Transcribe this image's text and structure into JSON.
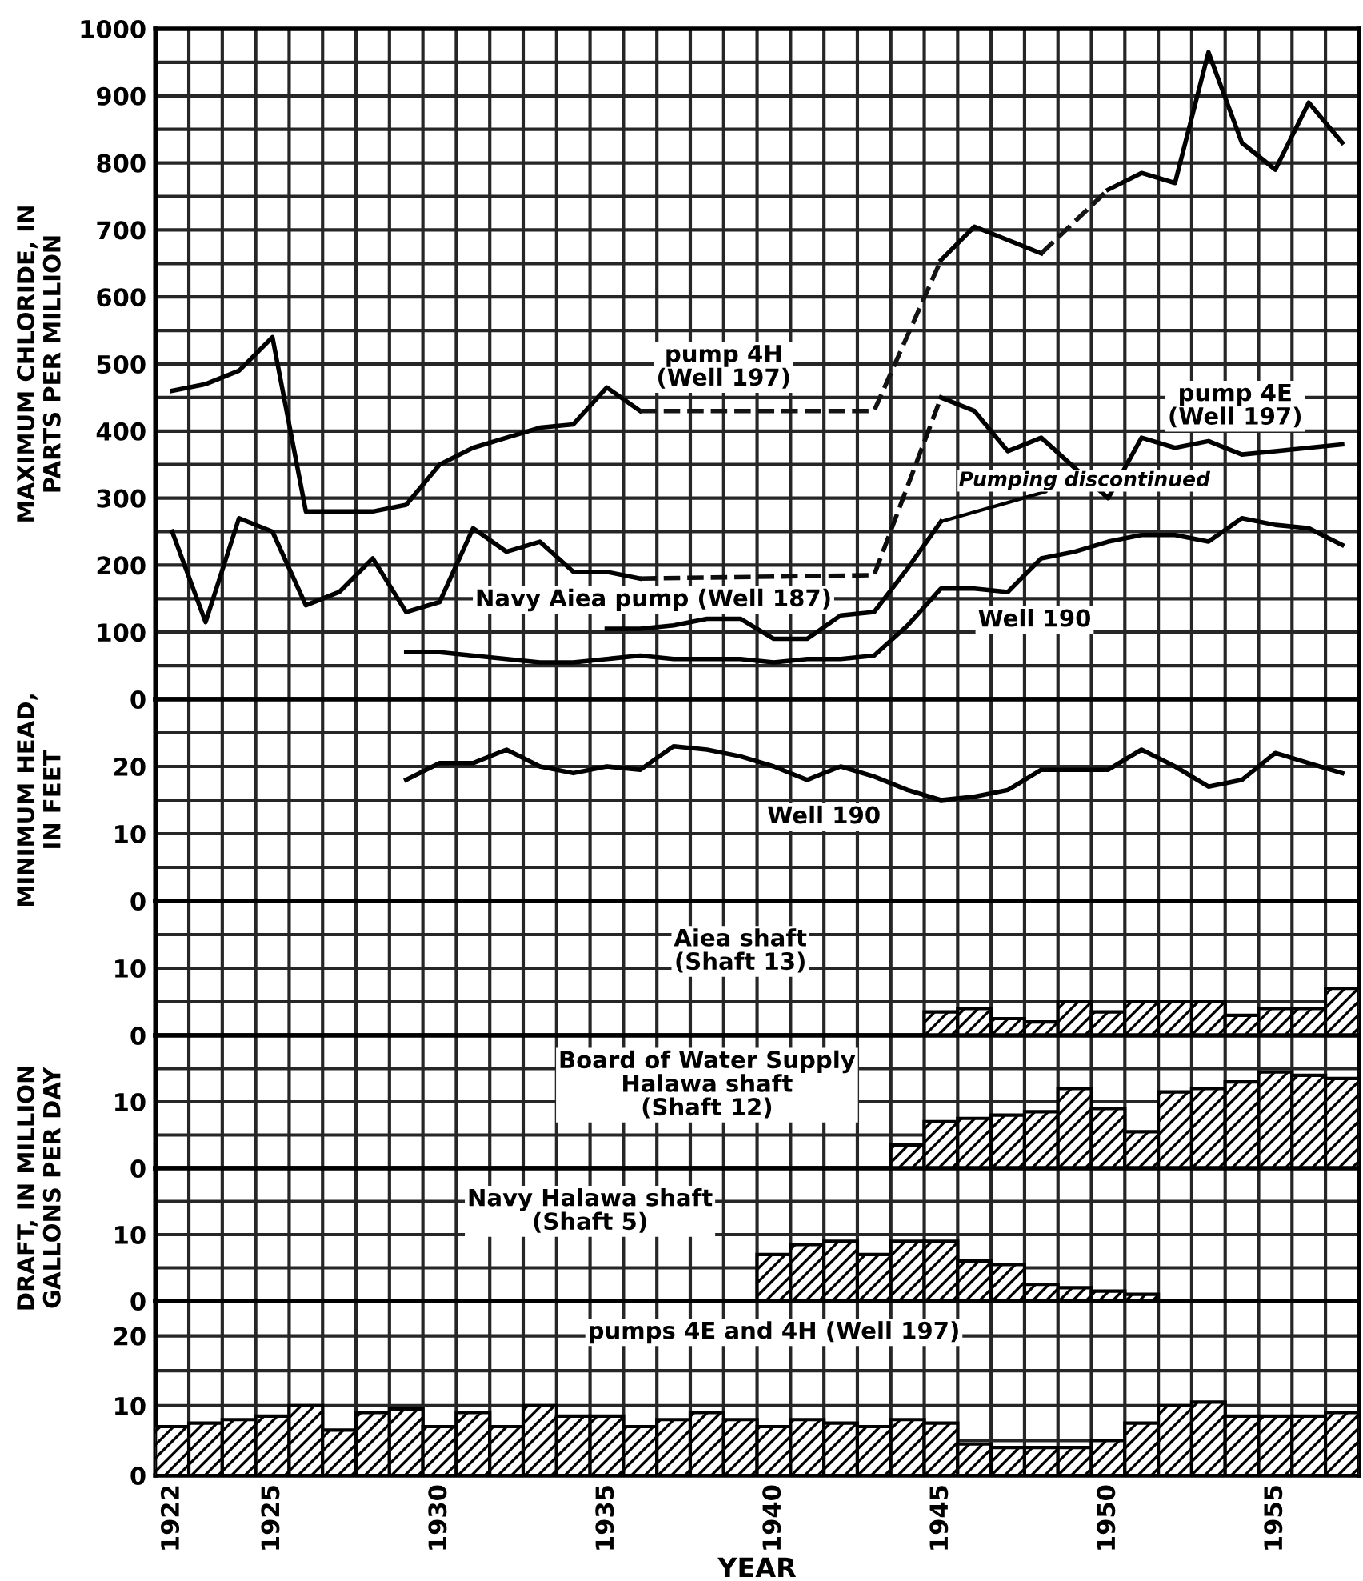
{
  "chart_data": [
    {
      "type": "line",
      "ylabel": "MAXIMUM CHLORIDE, IN\nPARTS PER MILLION",
      "xlim": [
        1921.5,
        1957.5
      ],
      "ylim": [
        0,
        1000
      ],
      "grid": true,
      "tick_labels": "y",
      "line_style": "solid",
      "xticks": [
        1922,
        1925,
        1930,
        1935,
        1940,
        1945,
        1950,
        1955,
        {
          "value": 1921.5,
          "label": null
        },
        {
          "value": 1922.5,
          "label": null
        },
        {
          "value": 1923.5,
          "label": null
        },
        {
          "value": 1924.5,
          "label": null
        },
        {
          "value": 1925.5,
          "label": null
        },
        {
          "value": 1926.5,
          "label": null
        },
        {
          "value": 1927.5,
          "label": null
        },
        {
          "value": 1928.5,
          "label": null
        },
        {
          "value": 1929.5,
          "label": null
        },
        {
          "value": 1930.5,
          "label": null
        },
        {
          "value": 1931.5,
          "label": null
        },
        {
          "value": 1932.5,
          "label": null
        },
        {
          "value": 1933.5,
          "label": null
        },
        {
          "value": 1934.5,
          "label": null
        },
        {
          "value": 1935.5,
          "label": null
        },
        {
          "value": 1936.5,
          "label": null
        },
        {
          "value": 1937.5,
          "label": null
        },
        {
          "value": 1938.5,
          "label": null
        },
        {
          "value": 1939.5,
          "label": null
        },
        {
          "value": 1940.5,
          "label": null
        },
        {
          "value": 1941.5,
          "label": null
        },
        {
          "value": 1942.5,
          "label": null
        },
        {
          "value": 1943.5,
          "label": null
        },
        {
          "value": 1944.5,
          "label": null
        },
        {
          "value": 1945.5,
          "label": null
        },
        {
          "value": 1946.5,
          "label": null
        },
        {
          "value": 1947.5,
          "label": null
        },
        {
          "value": 1948.5,
          "label": null
        },
        {
          "value": 1949.5,
          "label": null
        },
        {
          "value": 1950.5,
          "label": null
        },
        {
          "value": 1951.5,
          "label": null
        },
        {
          "value": 1952.5,
          "label": null
        },
        {
          "value": 1953.5,
          "label": null
        },
        {
          "value": 1954.5,
          "label": null
        },
        {
          "value": 1955.5,
          "label": null
        },
        {
          "value": 1956.5,
          "label": null
        },
        {
          "value": 1957.5,
          "label": null
        }
      ],
      "yticks": [
        0,
        {
          "value": 50,
          "label": null
        },
        100,
        {
          "value": 150,
          "label": null
        },
        200,
        {
          "value": 250,
          "label": null
        },
        300,
        {
          "value": 350,
          "label": null
        },
        400,
        {
          "value": 450,
          "label": null
        },
        500,
        {
          "value": 550,
          "label": null
        },
        600,
        {
          "value": 650,
          "label": null
        },
        700,
        {
          "value": 750,
          "label": null
        },
        800,
        {
          "value": 850,
          "label": null
        },
        900,
        {
          "value": 950,
          "label": null
        },
        1000
      ],
      "annotations": [
        {
          "text": "Pumping discontinued",
          "x": 1945,
          "y": 265
        }
      ],
      "series": [
        {
          "name": "pump 4H\n(Well 197)",
          "color": "#000000",
          "x": [
            1922,
            1923,
            1924,
            1925,
            1926,
            1927,
            1928,
            1929,
            1930,
            1931,
            1932,
            1933,
            1934,
            1935,
            1936,
            1937,
            1938,
            1939,
            1940,
            1941,
            1942,
            1943,
            1944,
            1945,
            1946,
            1947,
            1948,
            1949,
            1950,
            1951,
            1952,
            1953,
            1954,
            1955,
            1956,
            1957
          ],
          "values": [
            460,
            470,
            490,
            540,
            280,
            280,
            280,
            290,
            350,
            375,
            390,
            405,
            410,
            465,
            430,
            null,
            null,
            null,
            null,
            null,
            null,
            null,
            null,
            655,
            705,
            685,
            665,
            null,
            760,
            785,
            770,
            965,
            830,
            790,
            890,
            830
          ]
        },
        {
          "name": "pump 4E\n(Well 197)",
          "color": "#000000",
          "x": [
            1922,
            1923,
            1924,
            1925,
            1926,
            1927,
            1928,
            1929,
            1930,
            1931,
            1932,
            1933,
            1934,
            1935,
            1936,
            1937,
            1938,
            1939,
            1940,
            1941,
            1942,
            1943,
            1944,
            1945,
            1946,
            1947,
            1948,
            1949,
            1950,
            1951,
            1952,
            1953,
            1954,
            1955,
            1956,
            1957
          ],
          "values": [
            250,
            115,
            270,
            250,
            140,
            160,
            210,
            130,
            145,
            255,
            220,
            235,
            190,
            190,
            180,
            null,
            null,
            null,
            null,
            null,
            null,
            null,
            null,
            450,
            430,
            370,
            390,
            345,
            300,
            390,
            375,
            385,
            365,
            370,
            375,
            380
          ]
        },
        {
          "name": "Navy Aiea pump (Well 187)",
          "color": "#000000",
          "x": [
            1935,
            1936,
            1937,
            1938,
            1939,
            1940,
            1941,
            1942,
            1943,
            1944,
            1945
          ],
          "values": [
            105,
            105,
            110,
            120,
            120,
            90,
            90,
            125,
            130,
            195,
            265
          ]
        },
        {
          "name": "Well 190",
          "color": "#000000",
          "x": [
            1929,
            1930,
            1931,
            1932,
            1933,
            1934,
            1935,
            1936,
            1937,
            1938,
            1939,
            1940,
            1941,
            1942,
            1943,
            1944,
            1945,
            1946,
            1947,
            1948,
            1949,
            1950,
            1951,
            1952,
            1953,
            1954,
            1955,
            1956,
            1957
          ],
          "values": [
            70,
            70,
            65,
            60,
            55,
            55,
            60,
            65,
            60,
            60,
            60,
            55,
            60,
            60,
            65,
            110,
            165,
            165,
            160,
            210,
            220,
            235,
            245,
            245,
            235,
            270,
            260,
            255,
            230
          ]
        },
        {
          "color": "#141414",
          "line_style": "dashed",
          "x": [
            1936,
            1943,
            1945,
            1946,
            1948,
            1950
          ],
          "values": [
            430,
            430,
            655,
            null,
            665,
            760
          ]
        },
        {
          "color": "#0d0d0d",
          "line_style": "dashed",
          "x": [
            1936,
            1943,
            1945
          ],
          "values": [
            180,
            185,
            450
          ]
        }
      ]
    },
    {
      "type": "line",
      "ylabel": "MINIMUM HEAD,\nIN FEET",
      "xlim": [
        1921.5,
        1957.5
      ],
      "ylim": [
        0,
        30
      ],
      "grid": true,
      "tick_labels": "y",
      "line_style": "solid",
      "xticks": [
        1922,
        1925,
        1930,
        1935,
        1940,
        1945,
        1950,
        1955,
        {
          "value": 1921.5,
          "label": null
        },
        {
          "value": 1922.5,
          "label": null
        },
        {
          "value": 1923.5,
          "label": null
        },
        {
          "value": 1924.5,
          "label": null
        },
        {
          "value": 1925.5,
          "label": null
        },
        {
          "value": 1926.5,
          "label": null
        },
        {
          "value": 1927.5,
          "label": null
        },
        {
          "value": 1928.5,
          "label": null
        },
        {
          "value": 1929.5,
          "label": null
        },
        {
          "value": 1930.5,
          "label": null
        },
        {
          "value": 1931.5,
          "label": null
        },
        {
          "value": 1932.5,
          "label": null
        },
        {
          "value": 1933.5,
          "label": null
        },
        {
          "value": 1934.5,
          "label": null
        },
        {
          "value": 1935.5,
          "label": null
        },
        {
          "value": 1936.5,
          "label": null
        },
        {
          "value": 1937.5,
          "label": null
        },
        {
          "value": 1938.5,
          "label": null
        },
        {
          "value": 1939.5,
          "label": null
        },
        {
          "value": 1940.5,
          "label": null
        },
        {
          "value": 1941.5,
          "label": null
        },
        {
          "value": 1942.5,
          "label": null
        },
        {
          "value": 1943.5,
          "label": null
        },
        {
          "value": 1944.5,
          "label": null
        },
        {
          "value": 1945.5,
          "label": null
        },
        {
          "value": 1946.5,
          "label": null
        },
        {
          "value": 1947.5,
          "label": null
        },
        {
          "value": 1948.5,
          "label": null
        },
        {
          "value": 1949.5,
          "label": null
        },
        {
          "value": 1950.5,
          "label": null
        },
        {
          "value": 1951.5,
          "label": null
        },
        {
          "value": 1952.5,
          "label": null
        },
        {
          "value": 1953.5,
          "label": null
        },
        {
          "value": 1954.5,
          "label": null
        },
        {
          "value": 1955.5,
          "label": null
        },
        {
          "value": 1956.5,
          "label": null
        },
        {
          "value": 1957.5,
          "label": null
        }
      ],
      "yticks": [
        0,
        {
          "value": 5,
          "label": null
        },
        10,
        {
          "value": 15,
          "label": null
        },
        20,
        {
          "value": 25,
          "label": null
        },
        {
          "value": 30,
          "label": null
        }
      ],
      "series": [
        {
          "name": "Well 190",
          "color": "#000000",
          "x": [
            1929,
            1930,
            1931,
            1932,
            1933,
            1934,
            1935,
            1936,
            1937,
            1938,
            1939,
            1940,
            1941,
            1942,
            1943,
            1944,
            1945,
            1946,
            1947,
            1948,
            1949,
            1950,
            1951,
            1952,
            1953,
            1954,
            1955,
            1956,
            1957
          ],
          "values": [
            18,
            20.5,
            20.5,
            22.5,
            20,
            19,
            20,
            19.5,
            23,
            22.5,
            21.5,
            20,
            18,
            20,
            18.5,
            16.5,
            15,
            15.5,
            16.5,
            19.5,
            19.5,
            19.5,
            22.5,
            20,
            17,
            18,
            22,
            20.5,
            19
          ]
        }
      ]
    },
    {
      "type": "bar",
      "xlim": [
        1921.5,
        1957.5
      ],
      "ylim": [
        0,
        20
      ],
      "grid": true,
      "tick_labels": "y",
      "xticks": [
        1922,
        1925,
        1930,
        1935,
        1940,
        1945,
        1950,
        1955,
        {
          "value": 1921.5,
          "label": null
        },
        {
          "value": 1922.5,
          "label": null
        },
        {
          "value": 1923.5,
          "label": null
        },
        {
          "value": 1924.5,
          "label": null
        },
        {
          "value": 1925.5,
          "label": null
        },
        {
          "value": 1926.5,
          "label": null
        },
        {
          "value": 1927.5,
          "label": null
        },
        {
          "value": 1928.5,
          "label": null
        },
        {
          "value": 1929.5,
          "label": null
        },
        {
          "value": 1930.5,
          "label": null
        },
        {
          "value": 1931.5,
          "label": null
        },
        {
          "value": 1932.5,
          "label": null
        },
        {
          "value": 1933.5,
          "label": null
        },
        {
          "value": 1934.5,
          "label": null
        },
        {
          "value": 1935.5,
          "label": null
        },
        {
          "value": 1936.5,
          "label": null
        },
        {
          "value": 1937.5,
          "label": null
        },
        {
          "value": 1938.5,
          "label": null
        },
        {
          "value": 1939.5,
          "label": null
        },
        {
          "value": 1940.5,
          "label": null
        },
        {
          "value": 1941.5,
          "label": null
        },
        {
          "value": 1942.5,
          "label": null
        },
        {
          "value": 1943.5,
          "label": null
        },
        {
          "value": 1944.5,
          "label": null
        },
        {
          "value": 1945.5,
          "label": null
        },
        {
          "value": 1946.5,
          "label": null
        },
        {
          "value": 1947.5,
          "label": null
        },
        {
          "value": 1948.5,
          "label": null
        },
        {
          "value": 1949.5,
          "label": null
        },
        {
          "value": 1950.5,
          "label": null
        },
        {
          "value": 1951.5,
          "label": null
        },
        {
          "value": 1952.5,
          "label": null
        },
        {
          "value": 1953.5,
          "label": null
        },
        {
          "value": 1954.5,
          "label": null
        },
        {
          "value": 1955.5,
          "label": null
        },
        {
          "value": 1956.5,
          "label": null
        },
        {
          "value": 1957.5,
          "label": null
        }
      ],
      "yticks": [
        0,
        {
          "value": 5,
          "label": null
        },
        10,
        {
          "value": 15,
          "label": null
        },
        {
          "value": 20,
          "label": null
        }
      ],
      "series": [
        {
          "name": "Aiea shaft\n(Shaft 13)",
          "color": "#000000",
          "x": [
            1945,
            1946,
            1947,
            1948,
            1949,
            1950,
            1951,
            1952,
            1953,
            1954,
            1955,
            1956,
            1957
          ],
          "values": [
            3.5,
            4,
            2.5,
            2,
            5,
            3.5,
            5,
            5,
            5,
            3,
            4,
            4,
            7
          ]
        }
      ]
    },
    {
      "type": "bar",
      "ylabel": "DRAFT, IN MILLION\nGALLONS PER DAY",
      "xlim": [
        1921.5,
        1957.5
      ],
      "ylim": [
        0,
        20
      ],
      "grid": true,
      "tick_labels": "y",
      "xticks": [
        1922,
        1925,
        1930,
        1935,
        1940,
        1945,
        1950,
        1955,
        {
          "value": 1921.5,
          "label": null
        },
        {
          "value": 1922.5,
          "label": null
        },
        {
          "value": 1923.5,
          "label": null
        },
        {
          "value": 1924.5,
          "label": null
        },
        {
          "value": 1925.5,
          "label": null
        },
        {
          "value": 1926.5,
          "label": null
        },
        {
          "value": 1927.5,
          "label": null
        },
        {
          "value": 1928.5,
          "label": null
        },
        {
          "value": 1929.5,
          "label": null
        },
        {
          "value": 1930.5,
          "label": null
        },
        {
          "value": 1931.5,
          "label": null
        },
        {
          "value": 1932.5,
          "label": null
        },
        {
          "value": 1933.5,
          "label": null
        },
        {
          "value": 1934.5,
          "label": null
        },
        {
          "value": 1935.5,
          "label": null
        },
        {
          "value": 1936.5,
          "label": null
        },
        {
          "value": 1937.5,
          "label": null
        },
        {
          "value": 1938.5,
          "label": null
        },
        {
          "value": 1939.5,
          "label": null
        },
        {
          "value": 1940.5,
          "label": null
        },
        {
          "value": 1941.5,
          "label": null
        },
        {
          "value": 1942.5,
          "label": null
        },
        {
          "value": 1943.5,
          "label": null
        },
        {
          "value": 1944.5,
          "label": null
        },
        {
          "value": 1945.5,
          "label": null
        },
        {
          "value": 1946.5,
          "label": null
        },
        {
          "value": 1947.5,
          "label": null
        },
        {
          "value": 1948.5,
          "label": null
        },
        {
          "value": 1949.5,
          "label": null
        },
        {
          "value": 1950.5,
          "label": null
        },
        {
          "value": 1951.5,
          "label": null
        },
        {
          "value": 1952.5,
          "label": null
        },
        {
          "value": 1953.5,
          "label": null
        },
        {
          "value": 1954.5,
          "label": null
        },
        {
          "value": 1955.5,
          "label": null
        },
        {
          "value": 1956.5,
          "label": null
        },
        {
          "value": 1957.5,
          "label": null
        }
      ],
      "yticks": [
        0,
        {
          "value": 5,
          "label": null
        },
        10,
        {
          "value": 15,
          "label": null
        },
        {
          "value": 20,
          "label": null
        }
      ],
      "series": [
        {
          "name": "Board of Water Supply\nHalawa shaft\n(Shaft 12)",
          "color": "#000000",
          "x": [
            1944,
            1945,
            1946,
            1947,
            1948,
            1949,
            1950,
            1951,
            1952,
            1953,
            1954,
            1955,
            1956,
            1957
          ],
          "values": [
            3.5,
            7,
            7.5,
            8,
            8.5,
            12,
            9,
            5.5,
            11.5,
            12,
            13,
            14.5,
            14,
            13.5
          ]
        }
      ]
    },
    {
      "type": "bar",
      "xlim": [
        1921.5,
        1957.5
      ],
      "ylim": [
        0,
        20
      ],
      "grid": true,
      "tick_labels": "y",
      "xticks": [
        1922,
        1925,
        1930,
        1935,
        1940,
        1945,
        1950,
        1955,
        {
          "value": 1921.5,
          "label": null
        },
        {
          "value": 1922.5,
          "label": null
        },
        {
          "value": 1923.5,
          "label": null
        },
        {
          "value": 1924.5,
          "label": null
        },
        {
          "value": 1925.5,
          "label": null
        },
        {
          "value": 1926.5,
          "label": null
        },
        {
          "value": 1927.5,
          "label": null
        },
        {
          "value": 1928.5,
          "label": null
        },
        {
          "value": 1929.5,
          "label": null
        },
        {
          "value": 1930.5,
          "label": null
        },
        {
          "value": 1931.5,
          "label": null
        },
        {
          "value": 1932.5,
          "label": null
        },
        {
          "value": 1933.5,
          "label": null
        },
        {
          "value": 1934.5,
          "label": null
        },
        {
          "value": 1935.5,
          "label": null
        },
        {
          "value": 1936.5,
          "label": null
        },
        {
          "value": 1937.5,
          "label": null
        },
        {
          "value": 1938.5,
          "label": null
        },
        {
          "value": 1939.5,
          "label": null
        },
        {
          "value": 1940.5,
          "label": null
        },
        {
          "value": 1941.5,
          "label": null
        },
        {
          "value": 1942.5,
          "label": null
        },
        {
          "value": 1943.5,
          "label": null
        },
        {
          "value": 1944.5,
          "label": null
        },
        {
          "value": 1945.5,
          "label": null
        },
        {
          "value": 1946.5,
          "label": null
        },
        {
          "value": 1947.5,
          "label": null
        },
        {
          "value": 1948.5,
          "label": null
        },
        {
          "value": 1949.5,
          "label": null
        },
        {
          "value": 1950.5,
          "label": null
        },
        {
          "value": 1951.5,
          "label": null
        },
        {
          "value": 1952.5,
          "label": null
        },
        {
          "value": 1953.5,
          "label": null
        },
        {
          "value": 1954.5,
          "label": null
        },
        {
          "value": 1955.5,
          "label": null
        },
        {
          "value": 1956.5,
          "label": null
        },
        {
          "value": 1957.5,
          "label": null
        }
      ],
      "yticks": [
        0,
        {
          "value": 5,
          "label": null
        },
        10,
        {
          "value": 15,
          "label": null
        },
        {
          "value": 20,
          "label": null
        }
      ],
      "series": [
        {
          "name": "Navy Halawa shaft\n(Shaft 5)",
          "color": "#000000",
          "x": [
            1940,
            1941,
            1942,
            1943,
            1944,
            1945,
            1946,
            1947,
            1948,
            1949,
            1950,
            1951
          ],
          "values": [
            7,
            8.5,
            9,
            7,
            9,
            9,
            6,
            5.5,
            2.5,
            2,
            1.5,
            1
          ]
        }
      ]
    },
    {
      "type": "bar",
      "xlabel": "YEAR",
      "xlim": [
        1921.5,
        1957.5
      ],
      "ylim": [
        0,
        25
      ],
      "grid": true,
      "xticks": [
        1922,
        1925,
        1930,
        1935,
        1940,
        1945,
        1950,
        1955,
        {
          "value": 1921.5,
          "label": null
        },
        {
          "value": 1922.5,
          "label": null
        },
        {
          "value": 1923.5,
          "label": null
        },
        {
          "value": 1924.5,
          "label": null
        },
        {
          "value": 1925.5,
          "label": null
        },
        {
          "value": 1926.5,
          "label": null
        },
        {
          "value": 1927.5,
          "label": null
        },
        {
          "value": 1928.5,
          "label": null
        },
        {
          "value": 1929.5,
          "label": null
        },
        {
          "value": 1930.5,
          "label": null
        },
        {
          "value": 1931.5,
          "label": null
        },
        {
          "value": 1932.5,
          "label": null
        },
        {
          "value": 1933.5,
          "label": null
        },
        {
          "value": 1934.5,
          "label": null
        },
        {
          "value": 1935.5,
          "label": null
        },
        {
          "value": 1936.5,
          "label": null
        },
        {
          "value": 1937.5,
          "label": null
        },
        {
          "value": 1938.5,
          "label": null
        },
        {
          "value": 1939.5,
          "label": null
        },
        {
          "value": 1940.5,
          "label": null
        },
        {
          "value": 1941.5,
          "label": null
        },
        {
          "value": 1942.5,
          "label": null
        },
        {
          "value": 1943.5,
          "label": null
        },
        {
          "value": 1944.5,
          "label": null
        },
        {
          "value": 1945.5,
          "label": null
        },
        {
          "value": 1946.5,
          "label": null
        },
        {
          "value": 1947.5,
          "label": null
        },
        {
          "value": 1948.5,
          "label": null
        },
        {
          "value": 1949.5,
          "label": null
        },
        {
          "value": 1950.5,
          "label": null
        },
        {
          "value": 1951.5,
          "label": null
        },
        {
          "value": 1952.5,
          "label": null
        },
        {
          "value": 1953.5,
          "label": null
        },
        {
          "value": 1954.5,
          "label": null
        },
        {
          "value": 1955.5,
          "label": null
        },
        {
          "value": 1956.5,
          "label": null
        },
        {
          "value": 1957.5,
          "label": null
        }
      ],
      "yticks": [
        0,
        {
          "value": 5,
          "label": null
        },
        10,
        {
          "value": 15,
          "label": null
        },
        20,
        {
          "value": 25,
          "label": null
        }
      ],
      "series": [
        {
          "name": "pumps 4E and 4H (Well 197)",
          "color": "#000000",
          "x": [
            1922,
            1923,
            1924,
            1925,
            1926,
            1927,
            1928,
            1929,
            1930,
            1931,
            1932,
            1933,
            1934,
            1935,
            1936,
            1937,
            1938,
            1939,
            1940,
            1941,
            1942,
            1943,
            1944,
            1945,
            1946,
            1947,
            1948,
            1949,
            1950,
            1951,
            1952,
            1953,
            1954,
            1955,
            1956,
            1957
          ],
          "values": [
            7,
            7.5,
            8,
            8.5,
            10,
            6.5,
            9,
            9.5,
            7,
            9,
            7,
            10,
            8.5,
            8.5,
            7,
            8,
            9,
            8,
            7,
            8,
            7.5,
            7,
            8,
            7.5,
            4.5,
            4,
            4,
            4,
            5,
            7.5,
            10,
            10.5,
            8.5,
            8.5,
            8.5,
            9
          ]
        }
      ]
    }
  ]
}
